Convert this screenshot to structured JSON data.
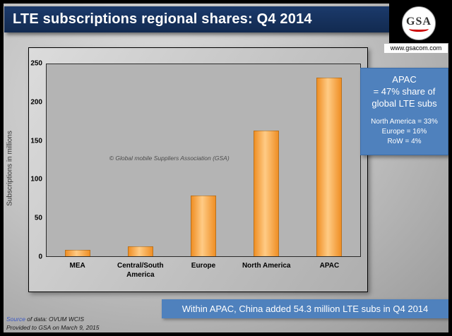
{
  "header": {
    "title": "LTE subscriptions regional shares: Q4 2014",
    "logo_text": "GSA",
    "website": "www.gsacom.com"
  },
  "chart_data": {
    "type": "bar",
    "title": "LTE subscriptions regional shares: Q4 2014",
    "categories": [
      "MEA",
      "Central/South\nAmerica",
      "Europe",
      "North America",
      "APAC"
    ],
    "values": [
      8,
      13,
      79,
      164,
      233
    ],
    "xlabel": "",
    "ylabel": "Subscriptions in millions",
    "ylim": [
      0,
      250
    ],
    "yticks": [
      0,
      50,
      100,
      150,
      200,
      250
    ],
    "grid": false,
    "legend": "none",
    "watermark": "© Global mobile Suppliers Association (GSA)"
  },
  "info_box": {
    "headline": "APAC\n= 47% share of\nglobal LTE subs",
    "details": "North America = 33%\nEurope = 16%\nRoW = 4%"
  },
  "callout": {
    "text": "Within APAC, China added 54.3 million LTE subs in Q4 2014"
  },
  "source": {
    "label": "Source",
    "line1_rest": " of data: OVUM WCIS",
    "line2": "Provided to GSA on March 9, 2015"
  },
  "colors": {
    "title_bar": "#1b3a6b",
    "accent_blue": "#4f81bd",
    "bar": "#f9a43a",
    "bar_light": "#ffcb85",
    "bar_dark": "#ef8f25",
    "logo_red": "#cc0000"
  }
}
